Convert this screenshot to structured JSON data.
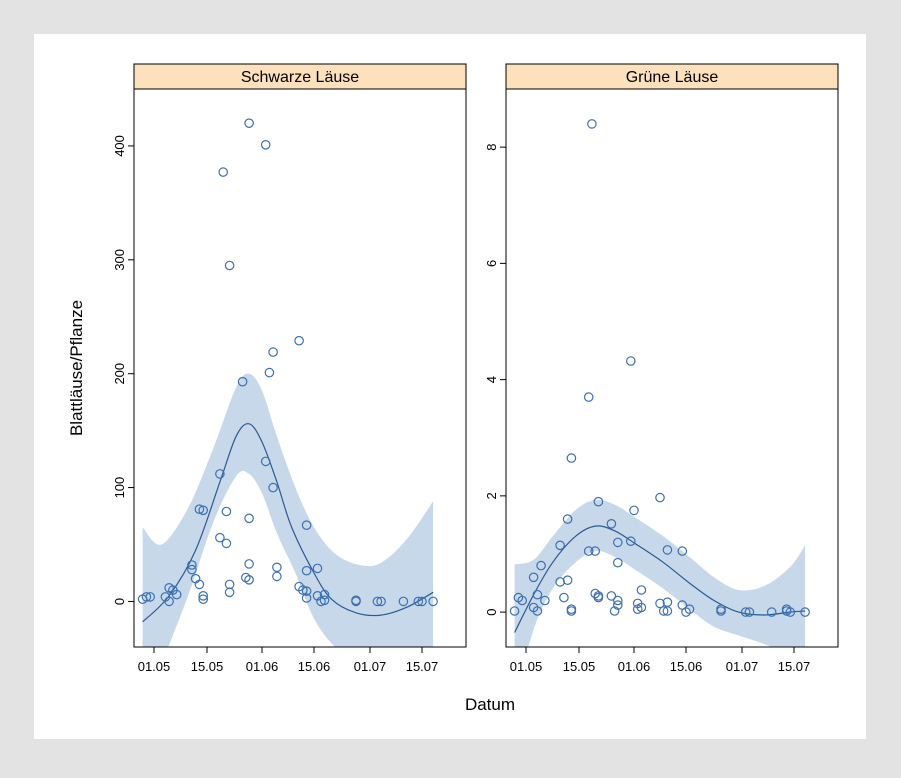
{
  "chart_data": {
    "type": "scatter",
    "xlabel": "Datum",
    "ylabel": "Blattläuse/Pflanze",
    "x_ticks": [
      "01.05",
      "15.05",
      "01.06",
      "15.06",
      "01.07",
      "15.07"
    ],
    "colors": {
      "points": "#3b70b3",
      "band": "#c6d8ea",
      "curve": "#2c5a92",
      "strip": "#fde0bc"
    },
    "panels": [
      {
        "title": "Schwarze Läuse",
        "ylim": [
          -40,
          450
        ],
        "y_ticks": [
          0,
          100,
          200,
          300,
          400
        ],
        "points": [
          [
            "28.04",
            2
          ],
          [
            "29.04",
            4
          ],
          [
            "30.04",
            4
          ],
          [
            "04.05",
            4
          ],
          [
            "05.05",
            0
          ],
          [
            "05.05",
            12
          ],
          [
            "06.05",
            10
          ],
          [
            "07.05",
            6
          ],
          [
            "11.05",
            32
          ],
          [
            "11.05",
            28
          ],
          [
            "12.05",
            20
          ],
          [
            "13.05",
            15
          ],
          [
            "13.05",
            81
          ],
          [
            "14.05",
            80
          ],
          [
            "14.05",
            5
          ],
          [
            "14.05",
            2
          ],
          [
            "19.05",
            112
          ],
          [
            "19.05",
            56
          ],
          [
            "20.05",
            377
          ],
          [
            "21.05",
            51
          ],
          [
            "21.05",
            79
          ],
          [
            "22.05",
            295
          ],
          [
            "22.05",
            15
          ],
          [
            "22.05",
            8
          ],
          [
            "26.05",
            193
          ],
          [
            "27.05",
            21
          ],
          [
            "28.05",
            420
          ],
          [
            "28.05",
            73
          ],
          [
            "28.05",
            33
          ],
          [
            "28.05",
            19
          ],
          [
            "02.06",
            401
          ],
          [
            "02.06",
            123
          ],
          [
            "03.06",
            201
          ],
          [
            "04.06",
            219
          ],
          [
            "04.06",
            100
          ],
          [
            "05.06",
            30
          ],
          [
            "05.06",
            22
          ],
          [
            "11.06",
            229
          ],
          [
            "11.06",
            13
          ],
          [
            "12.06",
            10
          ],
          [
            "13.06",
            67
          ],
          [
            "13.06",
            27
          ],
          [
            "13.06",
            3
          ],
          [
            "13.06",
            9
          ],
          [
            "16.06",
            29
          ],
          [
            "16.06",
            5
          ],
          [
            "17.06",
            0
          ],
          [
            "18.06",
            6
          ],
          [
            "18.06",
            1
          ],
          [
            "27.06",
            0
          ],
          [
            "27.06",
            1
          ],
          [
            "03.07",
            0
          ],
          [
            "04.07",
            0
          ],
          [
            "10.07",
            0
          ],
          [
            "14.07",
            0
          ],
          [
            "15.07",
            0
          ],
          [
            "18.07",
            0
          ]
        ],
        "fit": [
          [
            "28.04",
            -18
          ],
          [
            "05.05",
            5
          ],
          [
            "12.05",
            45
          ],
          [
            "19.05",
            105
          ],
          [
            "24.05",
            145
          ],
          [
            "28.05",
            156
          ],
          [
            "01.06",
            140
          ],
          [
            "05.06",
            105
          ],
          [
            "09.06",
            65
          ],
          [
            "15.06",
            25
          ],
          [
            "20.06",
            2
          ],
          [
            "27.06",
            -10
          ],
          [
            "04.07",
            -12
          ],
          [
            "11.07",
            -5
          ],
          [
            "18.07",
            8
          ]
        ],
        "band_upper": [
          [
            "28.04",
            65
          ],
          [
            "03.05",
            50
          ],
          [
            "10.05",
            82
          ],
          [
            "17.05",
            135
          ],
          [
            "24.05",
            188
          ],
          [
            "28.05",
            200
          ],
          [
            "01.06",
            185
          ],
          [
            "05.06",
            145
          ],
          [
            "10.06",
            100
          ],
          [
            "15.06",
            65
          ],
          [
            "21.06",
            42
          ],
          [
            "28.06",
            32
          ],
          [
            "04.07",
            34
          ],
          [
            "11.07",
            55
          ],
          [
            "18.07",
            88
          ]
        ],
        "band_lower": [
          [
            "28.04",
            -100
          ],
          [
            "03.05",
            -55
          ],
          [
            "10.05",
            5
          ],
          [
            "17.05",
            70
          ],
          [
            "24.05",
            110
          ],
          [
            "28.05",
            112
          ],
          [
            "01.06",
            95
          ],
          [
            "05.06",
            60
          ],
          [
            "10.06",
            25
          ],
          [
            "15.06",
            -15
          ],
          [
            "21.06",
            -40
          ],
          [
            "28.06",
            -55
          ],
          [
            "04.07",
            -60
          ],
          [
            "11.07",
            -65
          ],
          [
            "18.07",
            -72
          ]
        ]
      },
      {
        "title": "Grüne Läuse",
        "ylim": [
          -0.6,
          9.0
        ],
        "y_ticks": [
          0,
          2,
          4,
          6,
          8
        ],
        "points": [
          [
            "28.04",
            0.02
          ],
          [
            "29.04",
            0.25
          ],
          [
            "30.04",
            0.2
          ],
          [
            "03.05",
            0.6
          ],
          [
            "03.05",
            0.08
          ],
          [
            "04.05",
            0.3
          ],
          [
            "04.05",
            0.02
          ],
          [
            "05.05",
            0.8
          ],
          [
            "06.05",
            0.2
          ],
          [
            "10.05",
            1.15
          ],
          [
            "10.05",
            0.52
          ],
          [
            "11.05",
            0.25
          ],
          [
            "12.05",
            1.6
          ],
          [
            "12.05",
            0.55
          ],
          [
            "13.05",
            2.65
          ],
          [
            "13.05",
            0.05
          ],
          [
            "13.05",
            0.02
          ],
          [
            "18.05",
            3.7
          ],
          [
            "18.05",
            1.05
          ],
          [
            "19.05",
            8.4
          ],
          [
            "20.05",
            1.05
          ],
          [
            "21.05",
            1.9
          ],
          [
            "20.05",
            0.32
          ],
          [
            "21.05",
            0.25
          ],
          [
            "21.05",
            0.28
          ],
          [
            "25.05",
            1.52
          ],
          [
            "25.05",
            0.28
          ],
          [
            "26.05",
            0.02
          ],
          [
            "27.05",
            1.2
          ],
          [
            "27.05",
            0.85
          ],
          [
            "27.05",
            0.2
          ],
          [
            "27.05",
            0.12
          ],
          [
            "31.05",
            4.32
          ],
          [
            "31.05",
            1.22
          ],
          [
            "01.06",
            1.75
          ],
          [
            "02.06",
            0.15
          ],
          [
            "02.06",
            0.05
          ],
          [
            "03.06",
            0.38
          ],
          [
            "03.06",
            0.08
          ],
          [
            "08.06",
            1.97
          ],
          [
            "08.06",
            0.15
          ],
          [
            "09.06",
            0.02
          ],
          [
            "10.06",
            1.07
          ],
          [
            "10.06",
            0.17
          ],
          [
            "10.06",
            0.02
          ],
          [
            "14.06",
            1.05
          ],
          [
            "14.06",
            0.12
          ],
          [
            "15.06",
            0.0
          ],
          [
            "16.06",
            0.05
          ],
          [
            "25.06",
            0.02
          ],
          [
            "25.06",
            0.05
          ],
          [
            "02.07",
            0.0
          ],
          [
            "03.07",
            0.0
          ],
          [
            "09.07",
            0.0
          ],
          [
            "13.07",
            0.02
          ],
          [
            "13.07",
            0.05
          ],
          [
            "14.07",
            0.0
          ],
          [
            "18.07",
            0.0
          ]
        ],
        "fit": [
          [
            "28.04",
            -0.35
          ],
          [
            "03.05",
            0.3
          ],
          [
            "08.05",
            0.85
          ],
          [
            "14.05",
            1.3
          ],
          [
            "20.05",
            1.48
          ],
          [
            "26.05",
            1.4
          ],
          [
            "02.06",
            1.15
          ],
          [
            "09.06",
            0.85
          ],
          [
            "16.06",
            0.5
          ],
          [
            "23.06",
            0.2
          ],
          [
            "30.06",
            0.0
          ],
          [
            "07.07",
            -0.05
          ],
          [
            "14.07",
            0.0
          ],
          [
            "18.07",
            0.02
          ]
        ],
        "band_upper": [
          [
            "28.04",
            0.82
          ],
          [
            "03.05",
            0.9
          ],
          [
            "08.05",
            1.3
          ],
          [
            "14.05",
            1.75
          ],
          [
            "20.05",
            1.93
          ],
          [
            "26.05",
            1.85
          ],
          [
            "02.06",
            1.6
          ],
          [
            "09.06",
            1.3
          ],
          [
            "16.06",
            0.95
          ],
          [
            "23.06",
            0.6
          ],
          [
            "30.06",
            0.38
          ],
          [
            "07.07",
            0.45
          ],
          [
            "14.07",
            0.78
          ],
          [
            "18.07",
            1.15
          ]
        ],
        "band_lower": [
          [
            "28.04",
            -1.5
          ],
          [
            "03.05",
            -0.3
          ],
          [
            "08.05",
            0.4
          ],
          [
            "14.05",
            0.85
          ],
          [
            "20.05",
            1.05
          ],
          [
            "26.05",
            0.95
          ],
          [
            "02.06",
            0.7
          ],
          [
            "09.06",
            0.4
          ],
          [
            "16.06",
            0.05
          ],
          [
            "23.06",
            -0.25
          ],
          [
            "30.06",
            -0.4
          ],
          [
            "07.07",
            -0.55
          ],
          [
            "14.07",
            -0.75
          ],
          [
            "18.07",
            -1.0
          ]
        ]
      }
    ]
  }
}
